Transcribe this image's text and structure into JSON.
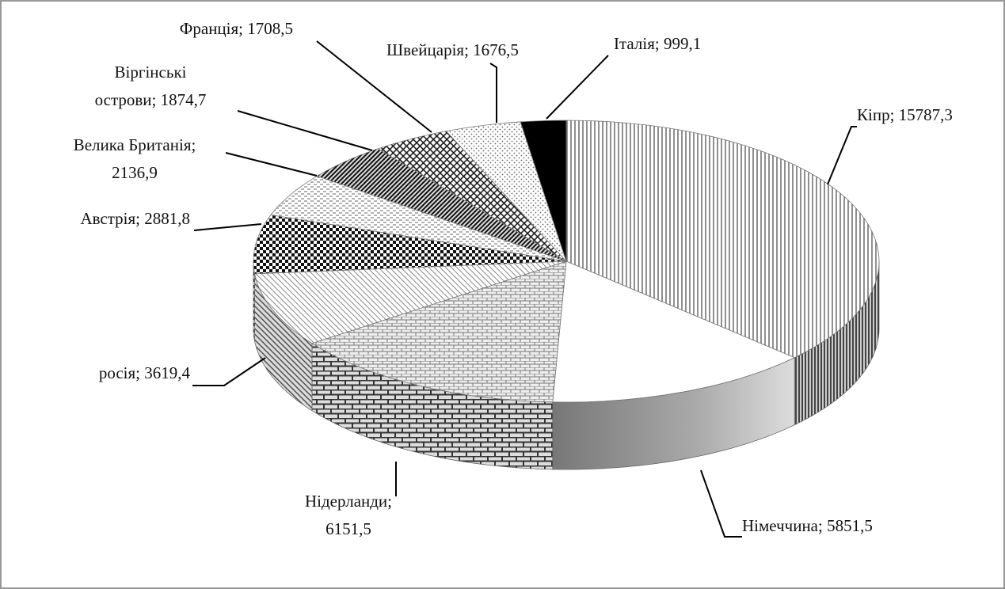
{
  "chart_data": {
    "type": "pie3d",
    "values": [
      15787.3,
      5851.5,
      6151.5,
      3619.4,
      2881.8,
      2136.9,
      1874.7,
      1708.5,
      1676.5,
      999.1
    ],
    "value_labels": [
      "Кіпр; 15787,3",
      "Німеччина; 5851,5",
      "Нідерланди;\n6151,5",
      "росія; 3619,4",
      "Австрія; 2881,8",
      "Велика Британія;\n2136,9",
      "Віргінські\nострови; 1874,7",
      "Франція; 1708,5",
      "Швейцарія; 1676,5",
      "Італія; 999,1"
    ]
  }
}
